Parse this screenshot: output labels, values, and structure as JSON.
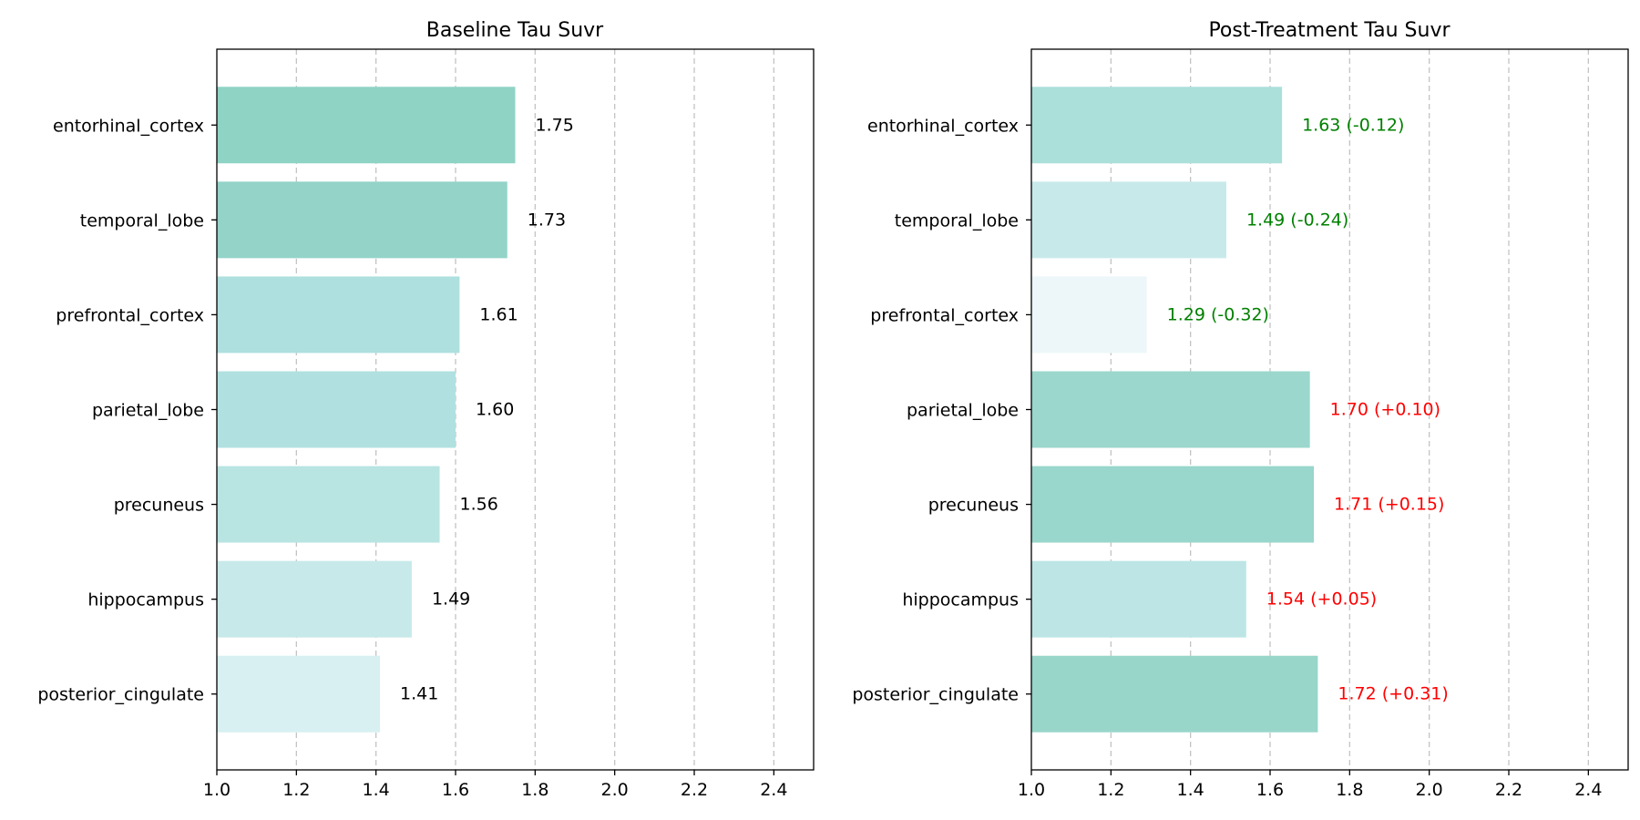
{
  "chart_data": [
    {
      "type": "bar",
      "orientation": "horizontal",
      "title": "Baseline Tau Suvr",
      "categories": [
        "entorhinal_cortex",
        "temporal_lobe",
        "prefrontal_cortex",
        "parietal_lobe",
        "precuneus",
        "hippocampus",
        "posterior_cingulate"
      ],
      "values": [
        1.75,
        1.73,
        1.61,
        1.6,
        1.56,
        1.49,
        1.41
      ],
      "labels": [
        "1.75",
        "1.73",
        "1.61",
        "1.60",
        "1.56",
        "1.49",
        "1.41"
      ],
      "label_colors": [
        "#000000",
        "#000000",
        "#000000",
        "#000000",
        "#000000",
        "#000000",
        "#000000"
      ],
      "bar_colors": [
        "#8fd3c4",
        "#93d3c8",
        "#ade0df",
        "#b0e1e0",
        "#b8e4e2",
        "#c8e9e9",
        "#d8f0f1"
      ],
      "xlim": [
        1.0,
        2.5
      ],
      "xticks": [
        1.0,
        1.2,
        1.4,
        1.6,
        1.8,
        2.0,
        2.2,
        2.4
      ],
      "xtick_labels": [
        "1.0",
        "1.2",
        "1.4",
        "1.6",
        "1.8",
        "2.0",
        "2.2",
        "2.4"
      ],
      "xlabel": "",
      "ylabel": "",
      "grid": "x-dashed"
    },
    {
      "type": "bar",
      "orientation": "horizontal",
      "title": "Post-Treatment Tau Suvr",
      "categories": [
        "entorhinal_cortex",
        "temporal_lobe",
        "prefrontal_cortex",
        "parietal_lobe",
        "precuneus",
        "hippocampus",
        "posterior_cingulate"
      ],
      "values": [
        1.63,
        1.49,
        1.29,
        1.7,
        1.71,
        1.54,
        1.72
      ],
      "labels": [
        "1.63 (-0.12)",
        "1.49 (-0.24)",
        "1.29 (-0.32)",
        "1.70 (+0.10)",
        "1.71 (+0.15)",
        "1.54 (+0.05)",
        "1.72 (+0.31)"
      ],
      "label_colors": [
        "#008000",
        "#008000",
        "#008000",
        "#ff0000",
        "#ff0000",
        "#ff0000",
        "#ff0000"
      ],
      "bar_colors": [
        "#abdfda",
        "#c8e9ea",
        "#edf7f9",
        "#9bd7cc",
        "#99d6cb",
        "#bde5e5",
        "#98d6ca"
      ],
      "xlim": [
        1.0,
        2.5
      ],
      "xticks": [
        1.0,
        1.2,
        1.4,
        1.6,
        1.8,
        2.0,
        2.2,
        2.4
      ],
      "xtick_labels": [
        "1.0",
        "1.2",
        "1.4",
        "1.6",
        "1.8",
        "2.0",
        "2.2",
        "2.4"
      ],
      "xlabel": "",
      "ylabel": "",
      "grid": "x-dashed"
    }
  ]
}
